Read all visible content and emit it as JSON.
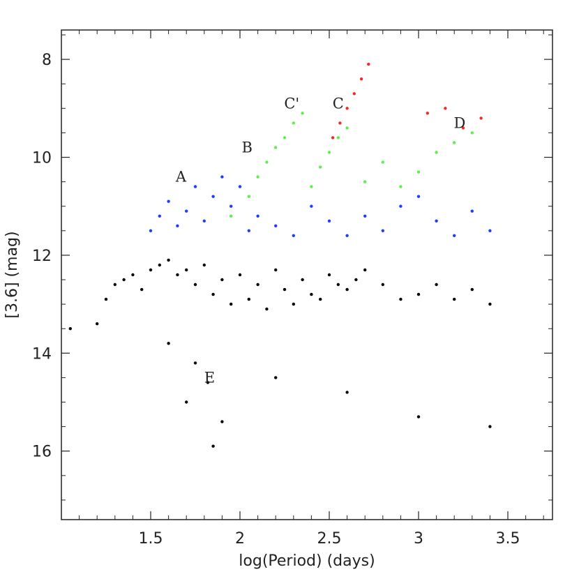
{
  "chart_data": {
    "type": "scatter",
    "title": "",
    "xlabel": "log(Period) (days)",
    "ylabel": "[3.6] (mag)",
    "xlim": [
      1.0,
      3.75
    ],
    "ylim": [
      7.4,
      17.4
    ],
    "y_inverted": true,
    "grid": false,
    "x_ticks": [
      1.5,
      2,
      2.5,
      3,
      3.5
    ],
    "x_tick_labels": [
      "1.5",
      "2",
      "2.5",
      "3",
      "3.5"
    ],
    "y_ticks": [
      8,
      10,
      12,
      14,
      16
    ],
    "y_tick_labels": [
      "8",
      "10",
      "12",
      "14",
      "16"
    ],
    "colors": {
      "faint": "#000000",
      "blue": "#1f3cff",
      "green": "#5cf04a",
      "red": "#f02a2a"
    },
    "annotations": [
      {
        "text": "A",
        "x": 1.67,
        "y": 10.4
      },
      {
        "text": "B",
        "x": 2.04,
        "y": 9.8
      },
      {
        "text": "C'",
        "x": 2.29,
        "y": 8.9
      },
      {
        "text": "C",
        "x": 2.55,
        "y": 8.9
      },
      {
        "text": "D",
        "x": 3.23,
        "y": 9.3
      },
      {
        "text": "E",
        "x": 1.83,
        "y": 14.5
      }
    ],
    "series": [
      {
        "color": "faint",
        "points": [
          [
            1.3,
            12.6
          ],
          [
            1.35,
            12.5
          ],
          [
            1.4,
            12.4
          ],
          [
            1.45,
            12.7
          ],
          [
            1.5,
            12.3
          ],
          [
            1.55,
            12.2
          ],
          [
            1.6,
            12.1
          ],
          [
            1.65,
            12.4
          ],
          [
            1.7,
            12.3
          ],
          [
            1.75,
            12.6
          ],
          [
            1.8,
            12.2
          ],
          [
            1.85,
            12.8
          ],
          [
            1.9,
            12.5
          ],
          [
            1.95,
            13.0
          ],
          [
            2.0,
            12.4
          ],
          [
            2.05,
            12.9
          ],
          [
            2.1,
            12.6
          ],
          [
            2.15,
            13.1
          ],
          [
            2.2,
            12.3
          ],
          [
            2.25,
            12.7
          ],
          [
            2.3,
            13.0
          ],
          [
            2.35,
            12.5
          ],
          [
            2.4,
            12.8
          ],
          [
            2.45,
            12.9
          ],
          [
            2.5,
            12.4
          ],
          [
            2.55,
            12.6
          ],
          [
            2.6,
            12.7
          ],
          [
            2.65,
            12.5
          ],
          [
            2.7,
            12.3
          ],
          [
            2.8,
            12.6
          ],
          [
            2.9,
            12.9
          ],
          [
            3.0,
            12.8
          ],
          [
            3.1,
            12.6
          ],
          [
            3.2,
            12.9
          ],
          [
            3.3,
            12.7
          ],
          [
            3.4,
            13.0
          ],
          [
            1.25,
            12.9
          ],
          [
            1.2,
            13.4
          ],
          [
            1.6,
            13.8
          ],
          [
            1.75,
            14.2
          ],
          [
            1.82,
            14.6
          ],
          [
            1.7,
            15.0
          ],
          [
            1.9,
            15.4
          ],
          [
            1.85,
            15.9
          ],
          [
            2.2,
            14.5
          ],
          [
            2.6,
            14.8
          ],
          [
            3.0,
            15.3
          ],
          [
            3.4,
            15.5
          ],
          [
            1.05,
            13.5
          ]
        ]
      },
      {
        "color": "blue",
        "points": [
          [
            1.5,
            11.5
          ],
          [
            1.55,
            11.2
          ],
          [
            1.6,
            10.9
          ],
          [
            1.65,
            11.4
          ],
          [
            1.7,
            11.1
          ],
          [
            1.75,
            10.6
          ],
          [
            1.8,
            11.3
          ],
          [
            1.85,
            10.8
          ],
          [
            1.9,
            10.4
          ],
          [
            1.95,
            11.0
          ],
          [
            2.0,
            10.6
          ],
          [
            2.05,
            11.5
          ],
          [
            2.1,
            11.2
          ],
          [
            2.2,
            11.4
          ],
          [
            2.3,
            11.6
          ],
          [
            2.4,
            11.0
          ],
          [
            2.5,
            11.3
          ],
          [
            2.6,
            11.6
          ],
          [
            2.7,
            11.2
          ],
          [
            2.8,
            11.5
          ],
          [
            2.9,
            11.0
          ],
          [
            3.0,
            10.8
          ],
          [
            3.1,
            11.3
          ],
          [
            3.2,
            11.6
          ],
          [
            3.3,
            11.1
          ],
          [
            3.4,
            11.5
          ]
        ]
      },
      {
        "color": "green",
        "points": [
          [
            1.95,
            11.2
          ],
          [
            2.05,
            10.8
          ],
          [
            2.1,
            10.4
          ],
          [
            2.15,
            10.1
          ],
          [
            2.2,
            9.8
          ],
          [
            2.25,
            9.6
          ],
          [
            2.3,
            9.3
          ],
          [
            2.35,
            9.1
          ],
          [
            2.4,
            10.6
          ],
          [
            2.45,
            10.2
          ],
          [
            2.5,
            9.9
          ],
          [
            2.55,
            9.6
          ],
          [
            2.6,
            9.4
          ],
          [
            2.7,
            10.5
          ],
          [
            2.8,
            10.1
          ],
          [
            2.9,
            10.6
          ],
          [
            3.0,
            10.3
          ],
          [
            3.1,
            9.9
          ],
          [
            3.2,
            9.7
          ],
          [
            3.3,
            9.5
          ]
        ]
      },
      {
        "color": "red",
        "points": [
          [
            2.52,
            9.6
          ],
          [
            2.56,
            9.3
          ],
          [
            2.6,
            9.0
          ],
          [
            2.64,
            8.7
          ],
          [
            2.68,
            8.4
          ],
          [
            2.72,
            8.1
          ],
          [
            3.05,
            9.1
          ],
          [
            3.15,
            9.0
          ],
          [
            3.25,
            9.4
          ],
          [
            3.35,
            9.2
          ]
        ]
      }
    ]
  }
}
